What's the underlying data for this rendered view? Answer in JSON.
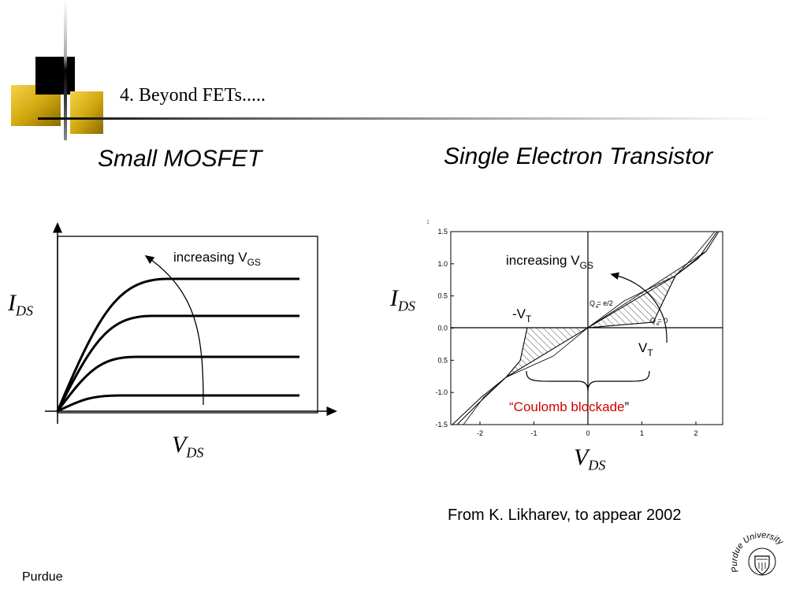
{
  "slide": {
    "title": "4.  Beyond FETs.....",
    "footer": "Purdue",
    "colors": {
      "gold": "#d4a910",
      "black": "#000000",
      "red": "#d40000"
    }
  },
  "left_panel": {
    "heading": "Small MOSFET",
    "annotation": {
      "text": "increasing V",
      "sub": "GS"
    },
    "ylabel": {
      "main": "I",
      "sub": "DS"
    },
    "xlabel": {
      "main": "V",
      "sub": "DS"
    },
    "curve_count": 4
  },
  "right_panel": {
    "heading": "Single Electron Transistor",
    "annotation": {
      "text": "increasing V",
      "sub": "GS"
    },
    "neg_vt": {
      "text": "-V",
      "sub": "T"
    },
    "pos_vt": {
      "text": "V",
      "sub": "T"
    },
    "qe_half": "Q  = e/2",
    "qe_zero": "Q  = 0",
    "qe_subscript": "e",
    "blockade": {
      "open_quote": "“",
      "text": "Coulomb blockade",
      "close_quote": "”"
    },
    "ylabel": {
      "main": "I",
      "sub": "DS"
    },
    "xlabel": {
      "main": "V",
      "sub": "DS"
    },
    "x_ticks": [
      "-2",
      "-1",
      "0",
      "1",
      "2"
    ],
    "y_ticks": [
      "1.5",
      "1.0",
      "0.5",
      "0.0",
      "0.5",
      "-1.0",
      "-1.5"
    ],
    "corner_mark": "1"
  },
  "citation": "From K. Likharev, to appear 2002",
  "logo": {
    "text": "Purdue University",
    "icon": "purdue-seal-icon"
  }
}
